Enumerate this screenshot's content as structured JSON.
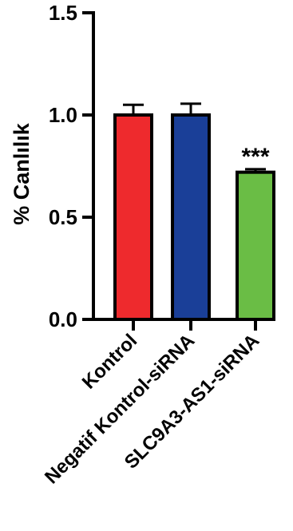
{
  "chart_data": {
    "type": "bar",
    "title": "",
    "ylabel": "% Canlılık",
    "xlabel": "",
    "ylim": [
      0,
      1.5
    ],
    "y_ticks": [
      "0.0",
      "0.5",
      "1.0",
      "1.5"
    ],
    "categories": [
      "Kontrol",
      "Negatif Kontrol-siRNA",
      "SLC9A3-AS1-siRNA"
    ],
    "values": [
      1.0,
      1.0,
      0.72
    ],
    "errors": [
      0.05,
      0.055,
      0.015
    ],
    "annotations": [
      "",
      "",
      "***"
    ],
    "colors": [
      "#ee2a2d",
      "#1a3f98",
      "#6abd45"
    ],
    "grid": false,
    "legend": "none"
  }
}
